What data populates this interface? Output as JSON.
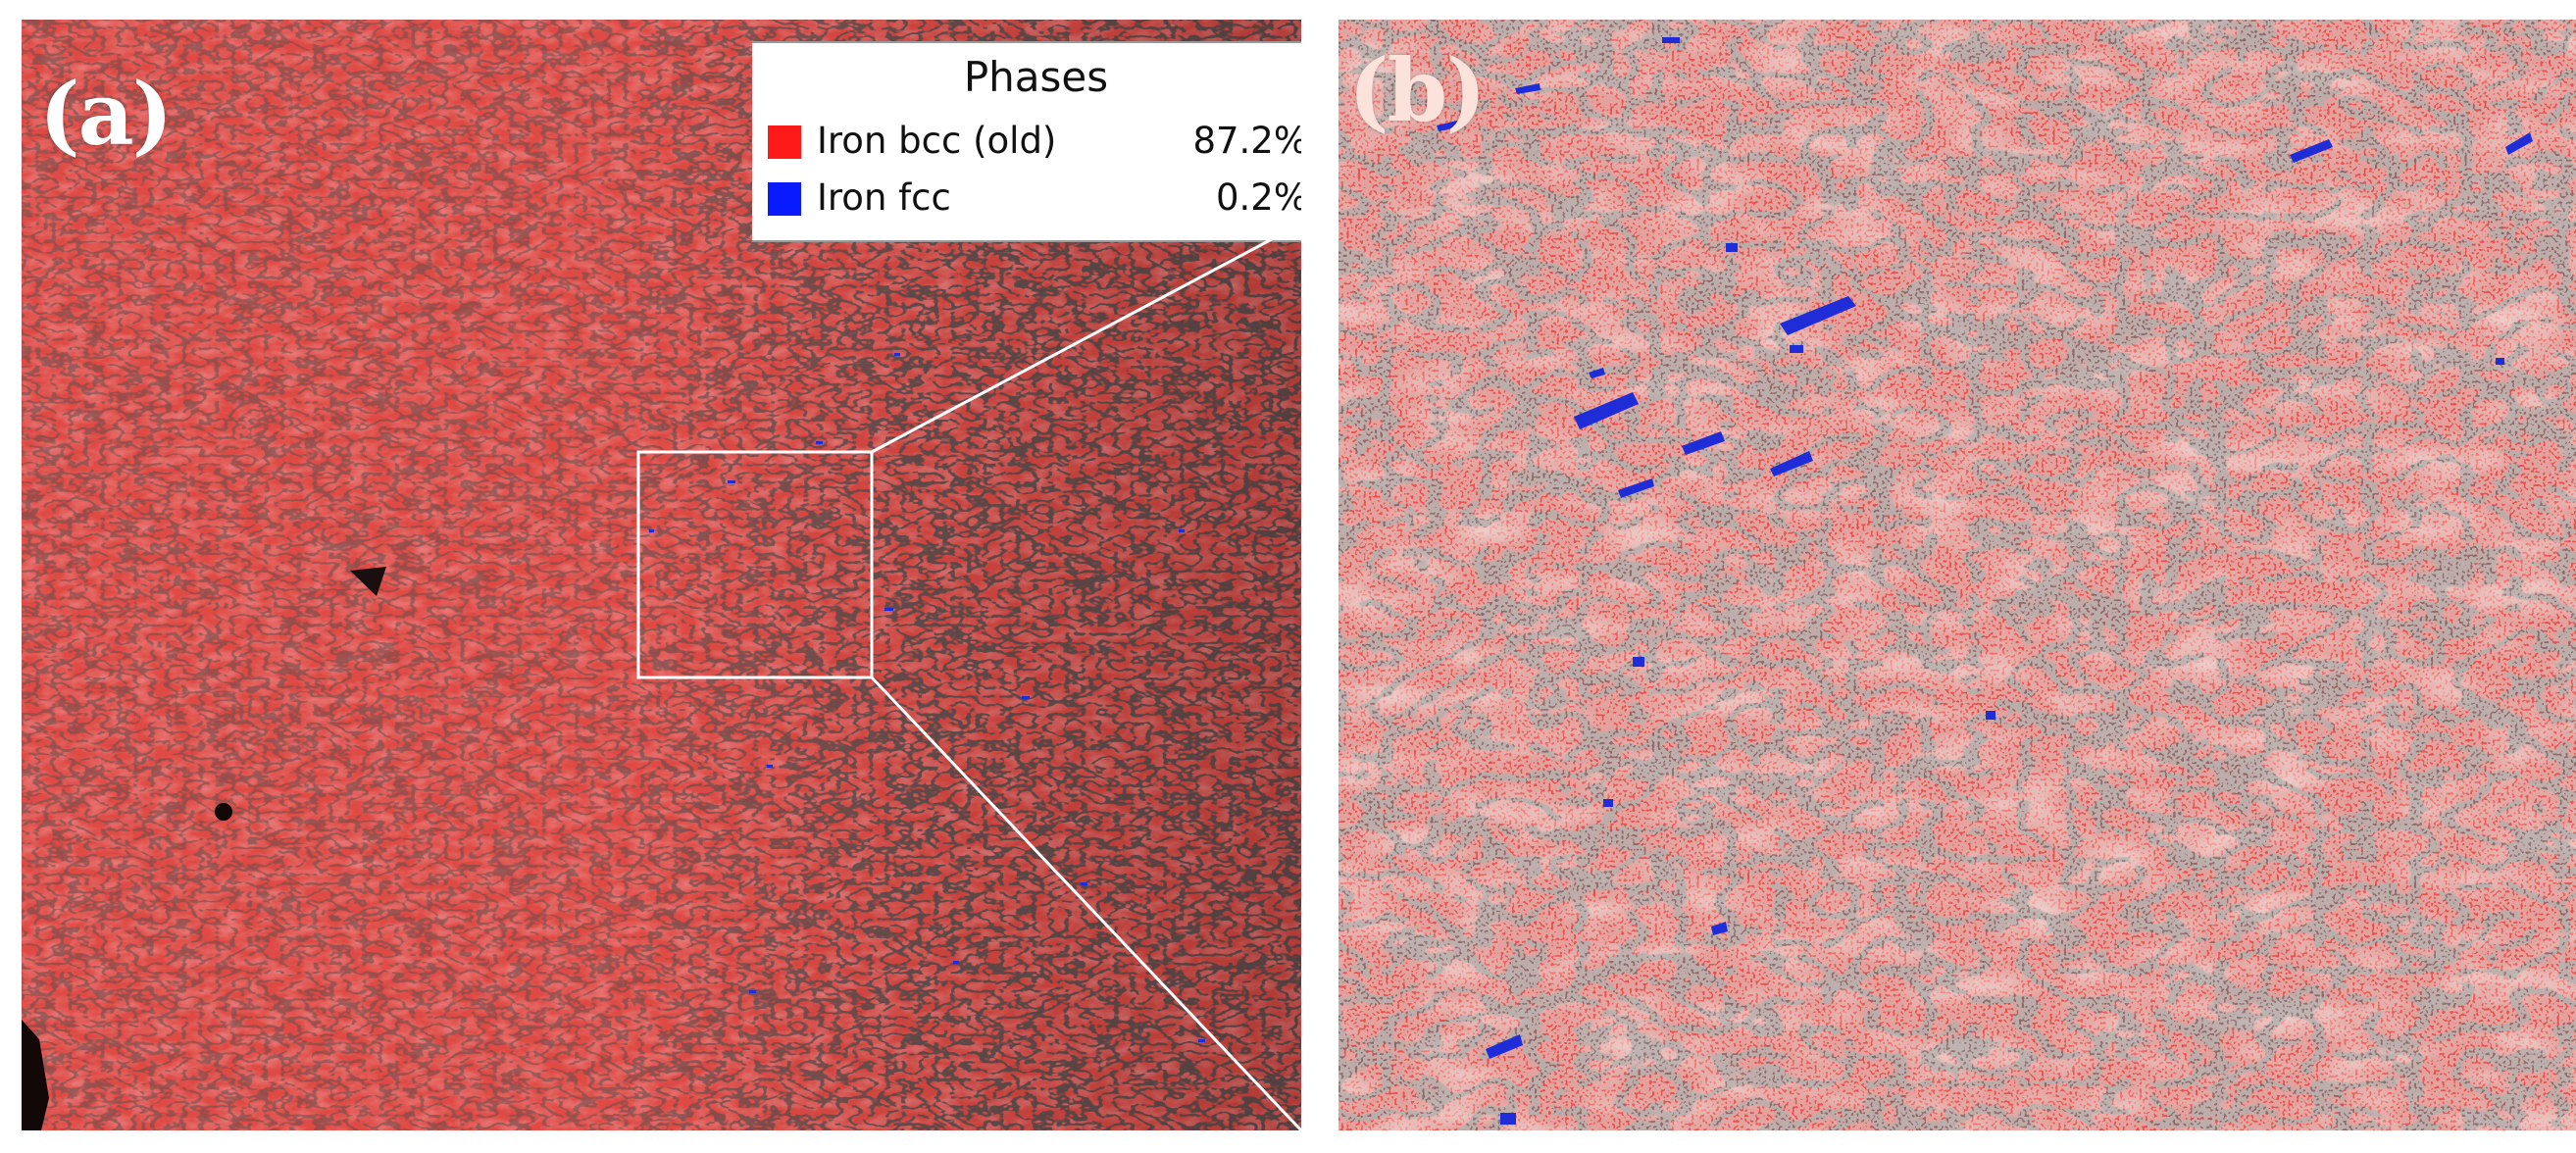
{
  "panels": {
    "a": {
      "label": "(a)"
    },
    "b": {
      "label": "(b)"
    }
  },
  "legend": {
    "title": "Phases",
    "entries": [
      {
        "name": "Iron bcc (old)",
        "percent": "87.2%",
        "color": "#ff1a1a"
      },
      {
        "name": "Iron fcc",
        "percent": "0.2%",
        "color": "#0a1aff"
      }
    ]
  },
  "colors": {
    "bcc_phase": "#d9453f",
    "bcc_phase_light": "#ef6b63",
    "grain_boundary": "#2b1a1a",
    "fcc_phase": "#1f2dd8",
    "zoom_box": "#ffffff"
  }
}
